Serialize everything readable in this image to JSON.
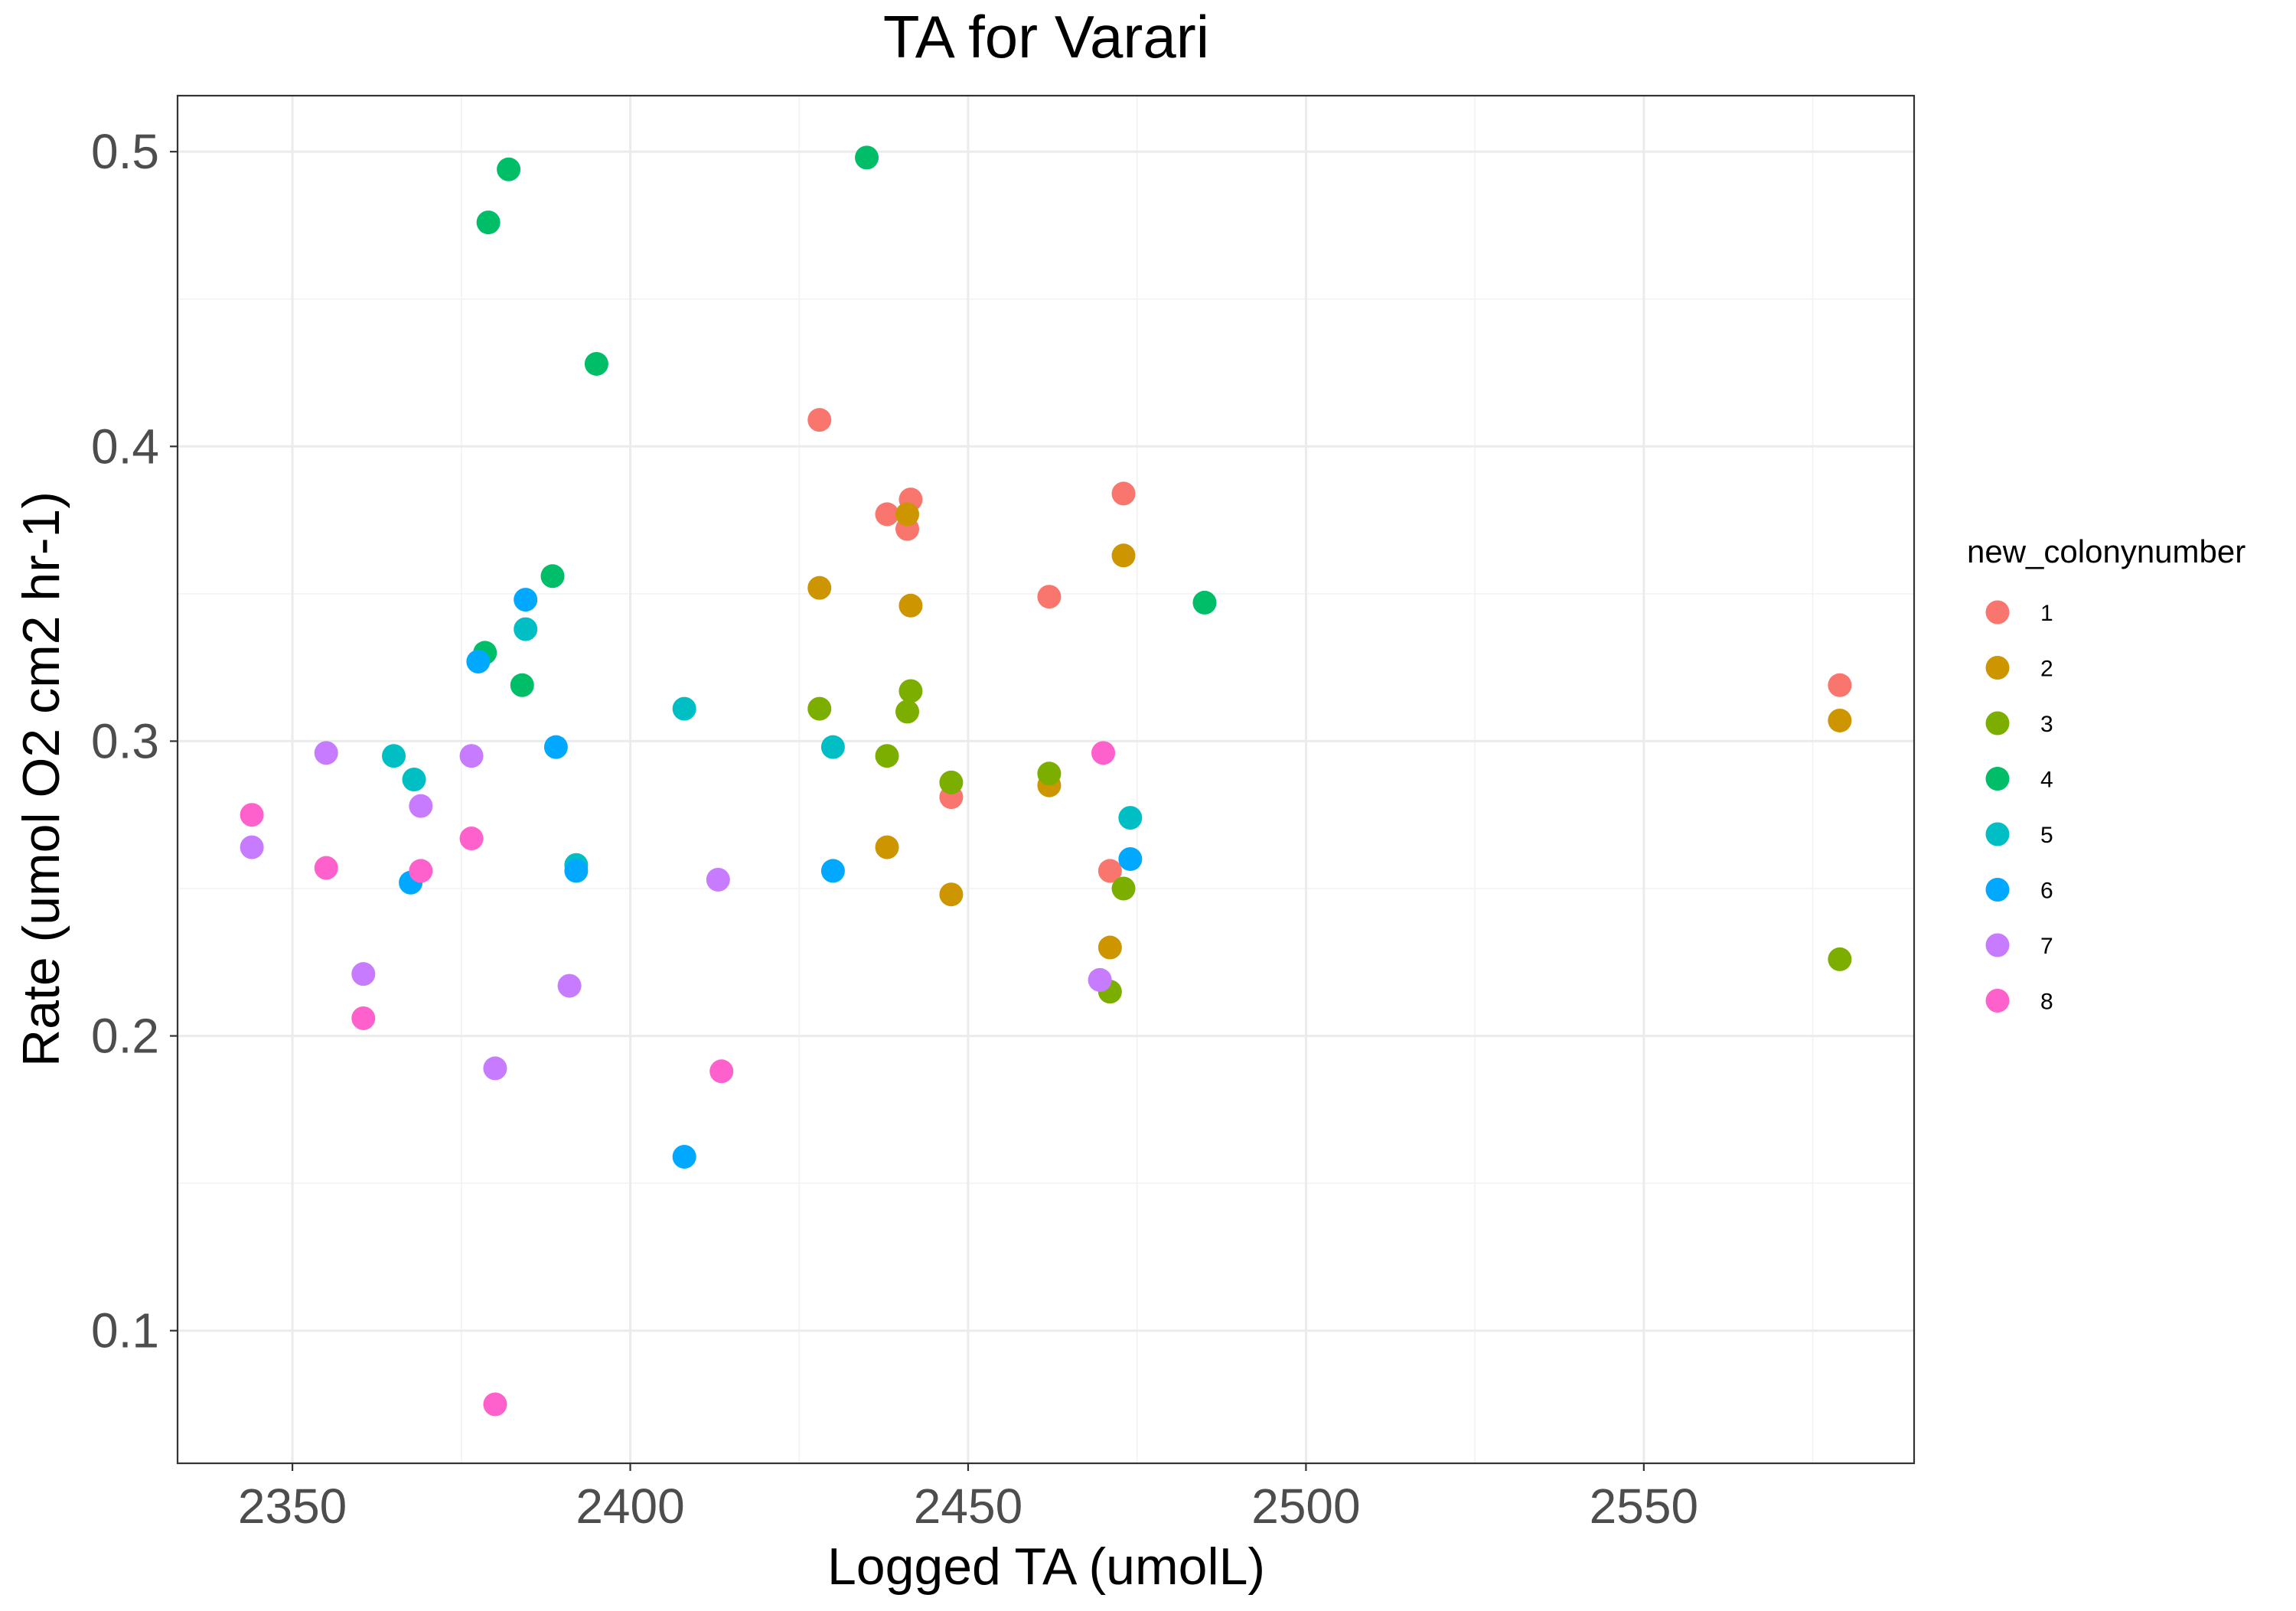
{
  "chart_data": {
    "type": "scatter",
    "title": "TA for Varari",
    "xlabel": "Logged TA (umolL)",
    "ylabel": "Rate (umol O2 cm2 hr-1)",
    "xlim": [
      2333,
      2590
    ],
    "ylim": [
      0.055,
      0.519
    ],
    "x_ticks": [
      2350,
      2400,
      2450,
      2500,
      2550
    ],
    "y_ticks": [
      0.1,
      0.2,
      0.3,
      0.4,
      0.5
    ],
    "x_tick_labels": [
      "2350",
      "2400",
      "2450",
      "2500",
      "2550"
    ],
    "y_tick_labels": [
      "0.1",
      "0.2",
      "0.3",
      "0.4",
      "0.5"
    ],
    "grid": true,
    "legend": {
      "title": "new_colonynumber",
      "position": "right"
    },
    "series": [
      {
        "name": "1",
        "color": "#F8766D",
        "points": [
          [
            2428,
            0.409
          ],
          [
            2438,
            0.377
          ],
          [
            2441.5,
            0.382
          ],
          [
            2441,
            0.372
          ],
          [
            2462,
            0.349
          ],
          [
            2473,
            0.384
          ],
          [
            2447.5,
            0.281
          ],
          [
            2471,
            0.256
          ],
          [
            2579,
            0.319
          ]
        ]
      },
      {
        "name": "2",
        "color": "#CD9600",
        "points": [
          [
            2428,
            0.352
          ],
          [
            2441,
            0.377
          ],
          [
            2441.5,
            0.346
          ],
          [
            2473,
            0.363
          ],
          [
            2438,
            0.264
          ],
          [
            2462,
            0.285
          ],
          [
            2447.5,
            0.248
          ],
          [
            2471,
            0.23
          ],
          [
            2579,
            0.307
          ]
        ]
      },
      {
        "name": "3",
        "color": "#7CAE00",
        "points": [
          [
            2428,
            0.311
          ],
          [
            2441,
            0.31
          ],
          [
            2441.5,
            0.317
          ],
          [
            2438,
            0.295
          ],
          [
            2447.5,
            0.286
          ],
          [
            2462,
            0.289
          ],
          [
            2473,
            0.25
          ],
          [
            2471,
            0.215
          ],
          [
            2579,
            0.226
          ]
        ]
      },
      {
        "name": "4",
        "color": "#00BE67",
        "points": [
          [
            2379,
            0.476
          ],
          [
            2382,
            0.494
          ],
          [
            2435,
            0.498
          ],
          [
            2395,
            0.428
          ],
          [
            2388.5,
            0.356
          ],
          [
            2378.5,
            0.33
          ],
          [
            2384,
            0.319
          ],
          [
            2485,
            0.347
          ]
        ]
      },
      {
        "name": "5",
        "color": "#00BFC4",
        "points": [
          [
            2384.5,
            0.338
          ],
          [
            2408,
            0.311
          ],
          [
            2430,
            0.298
          ],
          [
            2365,
            0.295
          ],
          [
            2368,
            0.287
          ],
          [
            2392,
            0.258
          ],
          [
            2474,
            0.274
          ]
        ]
      },
      {
        "name": "6",
        "color": "#00A9FF",
        "points": [
          [
            2384.5,
            0.348
          ],
          [
            2377.5,
            0.327
          ],
          [
            2389,
            0.298
          ],
          [
            2367.5,
            0.252
          ],
          [
            2392,
            0.256
          ],
          [
            2430,
            0.256
          ],
          [
            2474,
            0.26
          ],
          [
            2408,
            0.159
          ]
        ]
      },
      {
        "name": "7",
        "color": "#C77CFF",
        "points": [
          [
            2355,
            0.296
          ],
          [
            2376.5,
            0.295
          ],
          [
            2369,
            0.278
          ],
          [
            2344,
            0.264
          ],
          [
            2413,
            0.253
          ],
          [
            2360.5,
            0.221
          ],
          [
            2391,
            0.217
          ],
          [
            2380,
            0.189
          ],
          [
            2469.5,
            0.219
          ]
        ]
      },
      {
        "name": "8",
        "color": "#FF61CC",
        "points": [
          [
            2344,
            0.275
          ],
          [
            2355,
            0.257
          ],
          [
            2376.5,
            0.267
          ],
          [
            2369,
            0.256
          ],
          [
            2360.5,
            0.206
          ],
          [
            2413.5,
            0.188
          ],
          [
            2380,
            0.075
          ],
          [
            2470,
            0.296
          ]
        ]
      }
    ]
  }
}
